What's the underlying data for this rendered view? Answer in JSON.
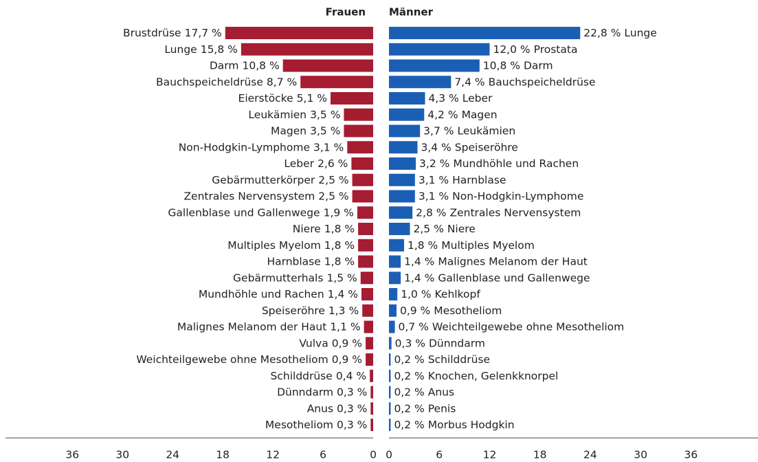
{
  "chart_data": [
    {
      "type": "bar",
      "orientation": "horizontal",
      "x_reversed": true,
      "title": "Frauen",
      "color": "#a61c31",
      "xlim": [
        0,
        44
      ],
      "xticks": [
        36,
        30,
        24,
        18,
        12,
        6,
        0
      ],
      "categories": [
        "Brustdrüse",
        "Lunge",
        "Darm",
        "Bauchspeicheldrüse",
        "Eierstöcke",
        "Leukämien",
        "Magen",
        "Non-Hodgkin-Lymphome",
        "Leber",
        "Gebärmutterkörper",
        "Zentrales Nervensystem",
        "Gallenblase und Gallenwege",
        "Niere",
        "Multiples Myelom",
        "Harnblase",
        "Gebärmutterhals",
        "Mundhöhle und Rachen",
        "Speiseröhre",
        "Malignes Melanom der Haut",
        "Vulva",
        "Weichteilgewebe ohne Mesotheliom",
        "Schilddrüse",
        "Dünndarm",
        "Anus",
        "Mesotheliom"
      ],
      "values": [
        17.7,
        15.8,
        10.8,
        8.7,
        5.1,
        3.5,
        3.5,
        3.1,
        2.6,
        2.5,
        2.5,
        1.9,
        1.8,
        1.8,
        1.8,
        1.5,
        1.4,
        1.3,
        1.1,
        0.9,
        0.9,
        0.4,
        0.3,
        0.3,
        0.3
      ],
      "value_labels": [
        "17,7 %",
        "15,8 %",
        "10,8 %",
        "8,7 %",
        "5,1 %",
        "3,5 %",
        "3,5 %",
        "3,1 %",
        "2,6 %",
        "2,5 %",
        "2,5 %",
        "1,9 %",
        "1,8 %",
        "1,8 %",
        "1,8 %",
        "1,5 %",
        "1,4 %",
        "1,3 %",
        "1,1 %",
        "0,9 %",
        "0,9 %",
        "0,4 %",
        "0,3 %",
        "0,3 %",
        "0,3 %"
      ]
    },
    {
      "type": "bar",
      "orientation": "horizontal",
      "x_reversed": false,
      "title": "Männer",
      "color": "#1b5fb5",
      "xlim": [
        0,
        44
      ],
      "xticks": [
        0,
        6,
        12,
        18,
        24,
        30,
        36
      ],
      "categories": [
        "Lunge",
        "Prostata",
        "Darm",
        "Bauchspeicheldrüse",
        "Leber",
        "Magen",
        "Leukämien",
        "Speiseröhre",
        "Mundhöhle und Rachen",
        "Harnblase",
        "Non-Hodgkin-Lymphome",
        "Zentrales Nervensystem",
        "Niere",
        "Multiples Myelom",
        "Malignes Melanom der Haut",
        "Gallenblase und Gallenwege",
        "Kehlkopf",
        "Mesotheliom",
        "Weichteilgewebe ohne Mesotheliom",
        "Dünndarm",
        "Schilddrüse",
        "Knochen, Gelenkknorpel",
        "Anus",
        "Penis",
        "Morbus Hodgkin"
      ],
      "values": [
        22.8,
        12.0,
        10.8,
        7.4,
        4.3,
        4.2,
        3.7,
        3.4,
        3.2,
        3.1,
        3.1,
        2.8,
        2.5,
        1.8,
        1.4,
        1.4,
        1.0,
        0.9,
        0.7,
        0.3,
        0.2,
        0.2,
        0.2,
        0.2,
        0.2
      ],
      "value_labels": [
        "22,8 %",
        "12,0 %",
        "10,8 %",
        "7,4 %",
        "4,3 %",
        "4,2 %",
        "3,7 %",
        "3,4 %",
        "3,2 %",
        "3,1 %",
        "3,1 %",
        "2,8 %",
        "2,5 %",
        "1,8 %",
        "1,4 %",
        "1,4 %",
        "1,0 %",
        "0,9 %",
        "0,7 %",
        "0,3 %",
        "0,2 %",
        "0,2 %",
        "0,2 %",
        "0,2 %",
        "0,2 %"
      ]
    }
  ]
}
